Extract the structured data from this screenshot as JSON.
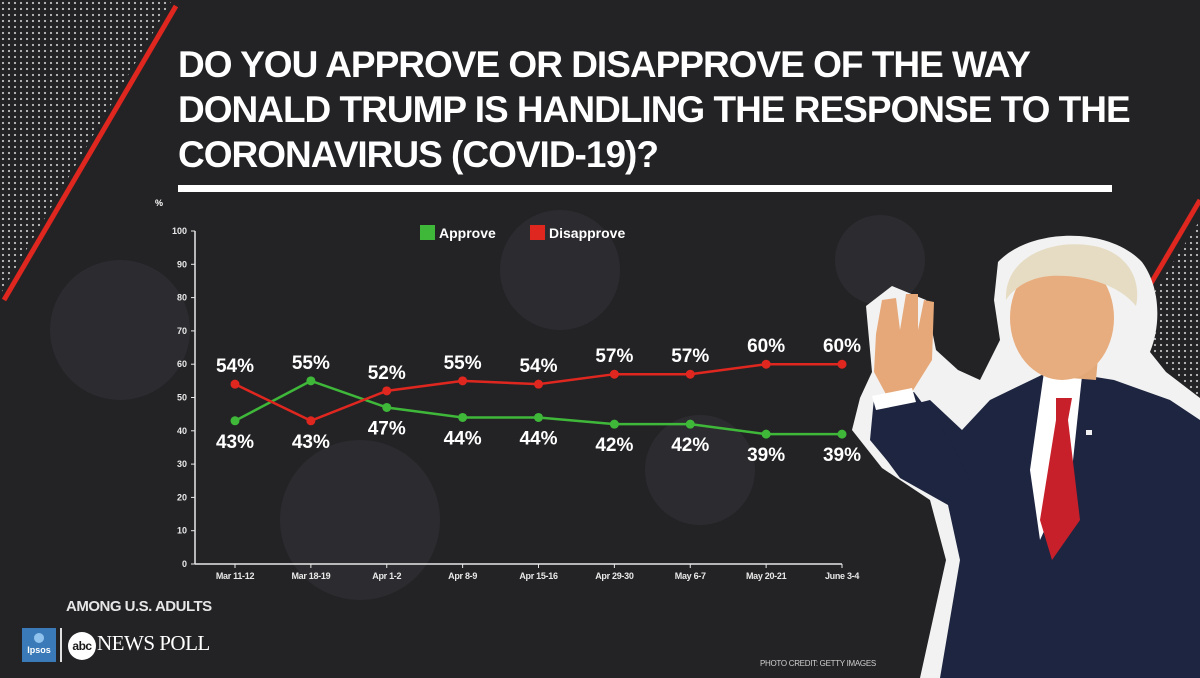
{
  "title": "DO YOU APPROVE OR DISAPPROVE OF THE WAY DONALD TRUMP IS HANDLING THE RESPONSE TO THE CORONAVIRUS (COVID-19)?",
  "subtitle": "AMONG U.S. ADULTS",
  "logos": {
    "ipsos": "Ipsos",
    "abc": "abc",
    "poll": "NEWS POLL"
  },
  "photo_credit": "PHOTO CREDIT: GETTY IMAGES",
  "colors": {
    "approve": "#3fb83a",
    "disapprove": "#e0271f",
    "background": "#232326",
    "accent": "#e0271f",
    "text": "#ffffff"
  },
  "chart_data": {
    "type": "line",
    "categories": [
      "Mar 11-12",
      "Mar 18-19",
      "Apr 1-2",
      "Apr 8-9",
      "Apr 15-16",
      "Apr 29-30",
      "May 6-7",
      "May 20-21",
      "June 3-4"
    ],
    "series": [
      {
        "name": "Approve",
        "color": "#3fb83a",
        "values": [
          43,
          55,
          47,
          44,
          44,
          42,
          42,
          39,
          39
        ],
        "labels": [
          "43%",
          "55%",
          "47%",
          "44%",
          "44%",
          "42%",
          "42%",
          "39%",
          "39%"
        ]
      },
      {
        "name": "Disapprove",
        "color": "#e0271f",
        "values": [
          54,
          43,
          52,
          55,
          54,
          57,
          57,
          60,
          60
        ],
        "labels": [
          "54%",
          "43%",
          "52%",
          "55%",
          "54%",
          "57%",
          "57%",
          "60%",
          "60%"
        ]
      }
    ],
    "ylabel": "%",
    "ylim": [
      0,
      100
    ],
    "yticks": [
      0,
      10,
      20,
      30,
      40,
      50,
      60,
      70,
      80,
      90,
      100
    ],
    "legend_position": "top-center",
    "grid": false
  }
}
